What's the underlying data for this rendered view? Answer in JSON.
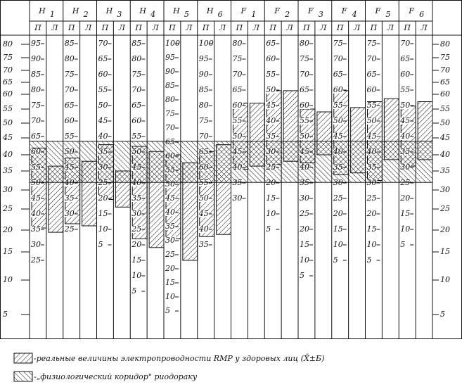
{
  "scale_ticks": [
    80,
    75,
    70,
    65,
    60,
    55,
    50,
    45,
    40,
    35,
    30,
    25,
    20,
    15,
    10,
    5
  ],
  "subheaders": [
    "П",
    "Л"
  ],
  "corridor": [
    44,
    32
  ],
  "meridians": [
    {
      "name": "H",
      "index": "1",
      "ticks": [
        95,
        90,
        85,
        80,
        75,
        70,
        65,
        60,
        55,
        50,
        45,
        40,
        35,
        30,
        25
      ],
      "p": [
        42,
        20.5
      ],
      "l": [
        36.5,
        19.5
      ]
    },
    {
      "name": "H",
      "index": "2",
      "ticks": [
        85,
        80,
        75,
        70,
        65,
        60,
        55,
        50,
        45,
        40,
        35,
        30,
        25
      ],
      "p": [
        39,
        21.5
      ],
      "l": [
        38,
        21
      ]
    },
    {
      "name": "H",
      "index": "3",
      "ticks": [
        70,
        65,
        60,
        55,
        50,
        45,
        40,
        35,
        30,
        25,
        20,
        15,
        10,
        5
      ],
      "p": [
        43,
        27.5
      ],
      "l": [
        35,
        25.5
      ]
    },
    {
      "name": "H",
      "index": "4",
      "ticks": [
        85,
        80,
        75,
        70,
        65,
        60,
        55,
        50,
        45,
        40,
        35,
        30,
        25,
        20,
        15,
        10,
        5
      ],
      "p": [
        42.5,
        18
      ],
      "l": [
        41,
        16
      ]
    },
    {
      "name": "H",
      "index": "5",
      "ticks": [
        100,
        95,
        90,
        85,
        80,
        75,
        70,
        65,
        60,
        55,
        50,
        45,
        40,
        35,
        30,
        25,
        20,
        15,
        10,
        5
      ],
      "p": [
        40,
        18
      ],
      "l": [
        37.5,
        13.5
      ]
    },
    {
      "name": "H",
      "index": "6",
      "ticks": [
        100,
        95,
        90,
        85,
        80,
        75,
        70,
        65,
        60,
        55,
        50,
        45,
        40,
        35
      ],
      "p": [
        41,
        18.5
      ],
      "l": [
        43,
        19
      ]
    },
    {
      "name": "F",
      "index": "1",
      "ticks": [
        80,
        75,
        70,
        65,
        60,
        55,
        50,
        45,
        40,
        35,
        30
      ],
      "p": [
        57,
        35.5
      ],
      "l": [
        57,
        36.5
      ]
    },
    {
      "name": "F",
      "index": "2",
      "ticks": [
        65,
        60,
        55,
        50,
        45,
        40,
        35,
        30,
        25,
        20,
        15,
        10,
        5
      ],
      "p": [
        61.5,
        37
      ],
      "l": [
        61.5,
        38
      ]
    },
    {
      "name": "F",
      "index": "3",
      "ticks": [
        80,
        75,
        70,
        65,
        60,
        55,
        50,
        45,
        40,
        35,
        30,
        25,
        20,
        15,
        10,
        5
      ],
      "p": [
        55,
        37.5
      ],
      "l": [
        54,
        40
      ]
    },
    {
      "name": "F",
      "index": "4",
      "ticks": [
        75,
        70,
        65,
        60,
        55,
        50,
        45,
        40,
        35,
        30,
        25,
        20,
        15,
        10,
        5
      ],
      "p": [
        61.5,
        34
      ],
      "l": [
        55.5,
        34.5
      ]
    },
    {
      "name": "F",
      "index": "5",
      "ticks": [
        75,
        70,
        65,
        60,
        55,
        50,
        45,
        40,
        35,
        30,
        25,
        20,
        15,
        10,
        5
      ],
      "p": [
        57.5,
        32.5
      ],
      "l": [
        58.5,
        38.5
      ]
    },
    {
      "name": "F",
      "index": "6",
      "ticks": [
        70,
        65,
        60,
        55,
        50,
        45,
        40,
        35,
        30,
        25,
        20,
        15,
        10,
        5
      ],
      "p": [
        56,
        36.5
      ],
      "l": [
        57.5,
        38.5
      ]
    }
  ],
  "legend": [
    "-реальные величины электропроводности RMP у здоровых лиц (X̄±Б)",
    "-„физиологический коридор\" риодораку"
  ]
}
